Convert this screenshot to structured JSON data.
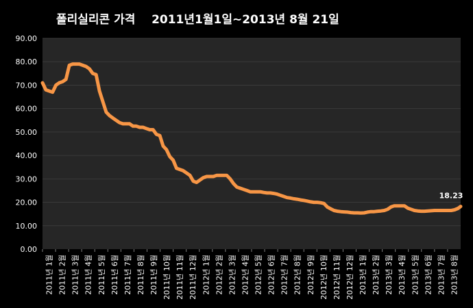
{
  "chart_data": {
    "type": "line",
    "title": "폴리실리콘 가격    2011년1월1일~2013년 8월 21일",
    "xlabel": "",
    "ylabel": "",
    "ylim": [
      0,
      90
    ],
    "yticks": [
      "0.00",
      "10.00",
      "20.00",
      "30.00",
      "40.00",
      "50.00",
      "60.00",
      "70.00",
      "80.00",
      "90.00"
    ],
    "categories": [
      "2011년 1월",
      "2011년 2월",
      "2011년 3월",
      "2011년 4월",
      "2011년 5월",
      "2011년 6월",
      "2011년 7월",
      "2011년 8월",
      "2011년 9월",
      "2011년 10월",
      "2011년 11월",
      "2011년 12월",
      "2012년 1월",
      "2012년 2월",
      "2012년 3월",
      "2012년 4월",
      "2012년 5월",
      "2012년 6월",
      "2012년 7월",
      "2012년 8월",
      "2012년 9월",
      "2012년 10월",
      "2012년 11월",
      "2012년 12월",
      "2013년 1월",
      "2013년 2월",
      "2013년 3월",
      "2013년 4월",
      "2013년 5월",
      "2013년 6월",
      "2013년 7월",
      "2013년 8월"
    ],
    "x": [
      0,
      0.25,
      0.5,
      0.75,
      1,
      1.25,
      1.5,
      1.75,
      2,
      2.25,
      2.5,
      2.75,
      3,
      3.25,
      3.5,
      3.75,
      4,
      4.25,
      4.5,
      4.75,
      5,
      5.25,
      5.5,
      5.75,
      6,
      6.25,
      6.5,
      6.75,
      7,
      7.25,
      7.5,
      7.75,
      8,
      8.25,
      8.5,
      8.75,
      9,
      9.25,
      9.5,
      9.75,
      10,
      10.25,
      10.5,
      10.75,
      11,
      11.25,
      11.5,
      11.75,
      12,
      12.25,
      12.5,
      12.75,
      13,
      13.25,
      13.5,
      13.75,
      14,
      14.25,
      14.5,
      14.75,
      15,
      15.25,
      15.5,
      15.75,
      16,
      16.25,
      16.5,
      16.75,
      17,
      17.25,
      17.5,
      17.75,
      18,
      18.25,
      18.5,
      18.75,
      19,
      19.25,
      19.5,
      19.75,
      20,
      20.25,
      20.5,
      20.75,
      21,
      21.25,
      21.5,
      21.75,
      22,
      22.25,
      22.5,
      22.75,
      23,
      23.25,
      23.5,
      23.75,
      24,
      24.25,
      24.5,
      24.75,
      25,
      25.25,
      25.5,
      25.75,
      26,
      26.25,
      26.5,
      26.75,
      27,
      27.25,
      27.5,
      27.75,
      28,
      28.25,
      28.5,
      28.75,
      29,
      29.25,
      29.5,
      29.75,
      30,
      30.25,
      30.5,
      30.75,
      31,
      31.2
    ],
    "series": [
      {
        "name": "",
        "color": "#f79646",
        "values": [
          71,
          68,
          67.5,
          67,
          70,
          71,
          71.5,
          72.5,
          78.5,
          79,
          79,
          79,
          78.5,
          78,
          77,
          75,
          74.5,
          67.5,
          63,
          58.5,
          57,
          56,
          55,
          54,
          53.5,
          53.5,
          53.5,
          52.5,
          52.5,
          52,
          52,
          51.5,
          51,
          51,
          49,
          48.5,
          44,
          42.5,
          39.5,
          38,
          34.5,
          34,
          33.5,
          32.5,
          31.5,
          29,
          28.5,
          29.5,
          30.5,
          31,
          31,
          31,
          31.5,
          31.5,
          31.5,
          31.5,
          30,
          28,
          26.5,
          26,
          25.5,
          25,
          24.5,
          24.5,
          24.5,
          24.5,
          24.2,
          24,
          24,
          23.8,
          23.5,
          23,
          22.5,
          22,
          21.8,
          21.5,
          21.3,
          21,
          20.8,
          20.5,
          20.2,
          20,
          20,
          19.8,
          19.5,
          18,
          17.2,
          16.5,
          16.2,
          16,
          15.9,
          15.8,
          15.6,
          15.5,
          15.5,
          15.4,
          15.5,
          15.8,
          16,
          16,
          16.2,
          16.3,
          16.5,
          17,
          18,
          18.5,
          18.5,
          18.5,
          18.5,
          17.5,
          17,
          16.5,
          16.3,
          16.2,
          16.2,
          16.3,
          16.4,
          16.5,
          16.5,
          16.5,
          16.5,
          16.5,
          16.5,
          16.8,
          17.4,
          18.23
        ]
      }
    ],
    "end_label": "18.23",
    "grid": true,
    "legend": "none"
  }
}
